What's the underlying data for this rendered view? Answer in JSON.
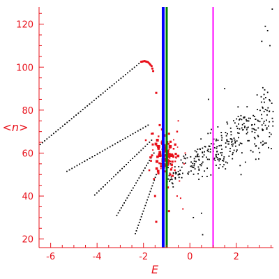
{
  "chart_data": {
    "type": "scatter",
    "title": "",
    "xlabel": "E",
    "ylabel": "<n>",
    "xlim": [
      -6.5,
      3.6
    ],
    "ylim": [
      16,
      128
    ],
    "xticks": [
      -6,
      -4,
      -2,
      0,
      2
    ],
    "yticks": [
      20,
      40,
      60,
      80,
      100,
      120
    ],
    "grid": false,
    "legend": "none",
    "colors": {
      "axis": "#e8101a",
      "black_points": "#000000",
      "red_points": "#e8101a",
      "line_blue": "#0000ff",
      "line_green": "#008000",
      "line_magenta": "#ff00ff"
    },
    "vertical_lines": [
      {
        "x": -1.15,
        "color": "#0000ff"
      },
      {
        "x": -1.0,
        "color": "#008000"
      },
      {
        "x": 1.0,
        "color": "#ff00ff"
      }
    ],
    "dotted_curves": [
      {
        "x_start": -6.45,
        "y_start": 64,
        "x_end": -2.1,
        "y_end": 102.5
      },
      {
        "x_start": -5.3,
        "y_start": 51.5,
        "x_end": -1.8,
        "y_end": 73
      },
      {
        "x_start": -4.1,
        "y_start": 40.5,
        "x_end": -1.65,
        "y_end": 66
      },
      {
        "x_start": -3.15,
        "y_start": 31,
        "x_end": -1.55,
        "y_end": 60
      },
      {
        "x_start": -2.35,
        "y_start": 22.5,
        "x_end": -1.45,
        "y_end": 50
      }
    ],
    "top_arc": [
      {
        "x": -2.1,
        "y": 102.5
      },
      {
        "x": -1.95,
        "y": 102.8
      },
      {
        "x": -1.8,
        "y": 102.3
      },
      {
        "x": -1.65,
        "y": 100.5
      },
      {
        "x": -1.55,
        "y": 97
      }
    ],
    "red_points": [
      {
        "x": -1.45,
        "y": 88,
        "s": 3
      },
      {
        "x": -1.5,
        "y": 40,
        "s": 3
      },
      {
        "x": -1.45,
        "y": 28,
        "s": 3
      },
      {
        "x": -1.3,
        "y": 73,
        "s": 3
      },
      {
        "x": -1.35,
        "y": 63,
        "s": 4.5
      },
      {
        "x": -1.3,
        "y": 59,
        "s": 5
      },
      {
        "x": -1.25,
        "y": 55,
        "s": 3
      },
      {
        "x": -1.4,
        "y": 66,
        "s": 4
      },
      {
        "x": -0.85,
        "y": 63,
        "s": 4.5
      },
      {
        "x": -0.8,
        "y": 59,
        "s": 5
      },
      {
        "x": -0.75,
        "y": 56,
        "s": 3
      },
      {
        "x": -0.9,
        "y": 69,
        "s": 3
      },
      {
        "x": -0.95,
        "y": 44,
        "s": 3
      },
      {
        "x": -0.9,
        "y": 33,
        "s": 3
      },
      {
        "x": -0.85,
        "y": 50,
        "s": 3
      },
      {
        "x": -0.65,
        "y": 52,
        "s": 2.5
      },
      {
        "x": -0.55,
        "y": 70,
        "s": 2.5
      },
      {
        "x": -0.5,
        "y": 75,
        "s": 2
      },
      {
        "x": -0.45,
        "y": 47,
        "s": 2
      },
      {
        "x": -1.7,
        "y": 58,
        "s": 3
      },
      {
        "x": -1.6,
        "y": 64,
        "s": 3
      },
      {
        "x": -1.75,
        "y": 52,
        "s": 2.5
      },
      {
        "x": -1.65,
        "y": 69,
        "s": 2.5
      },
      {
        "x": -1.9,
        "y": 66,
        "s": 2.5
      },
      {
        "x": -1.55,
        "y": 48,
        "s": 2.5
      },
      {
        "x": -0.7,
        "y": 62,
        "s": 2.5
      },
      {
        "x": -0.6,
        "y": 58,
        "s": 2.5
      },
      {
        "x": -0.4,
        "y": 39,
        "s": 2
      },
      {
        "x": -0.3,
        "y": 34,
        "s": 2
      },
      {
        "x": -0.25,
        "y": 55,
        "s": 2
      },
      {
        "x": -0.2,
        "y": 60,
        "s": 2
      },
      {
        "x": -0.55,
        "y": 40,
        "s": 2
      },
      {
        "x": -1.2,
        "y": 71,
        "s": 3
      }
    ],
    "black_scatter": {
      "count": 330,
      "x_range": [
        -1.0,
        3.6
      ],
      "center_start": [
        -0.8,
        50
      ],
      "center_end": [
        3.5,
        75
      ],
      "spread_start": 6,
      "spread_end": 22,
      "outliers": [
        {
          "x": 3.55,
          "y": 127
        },
        {
          "x": 3.25,
          "y": 119
        },
        {
          "x": 3.35,
          "y": 117
        },
        {
          "x": 3.1,
          "y": 112
        },
        {
          "x": 3.45,
          "y": 110
        },
        {
          "x": 1.5,
          "y": 90
        },
        {
          "x": 0.8,
          "y": 85
        },
        {
          "x": 0.55,
          "y": 22
        },
        {
          "x": 0.5,
          "y": 32
        },
        {
          "x": 0.15,
          "y": 30
        }
      ]
    }
  }
}
